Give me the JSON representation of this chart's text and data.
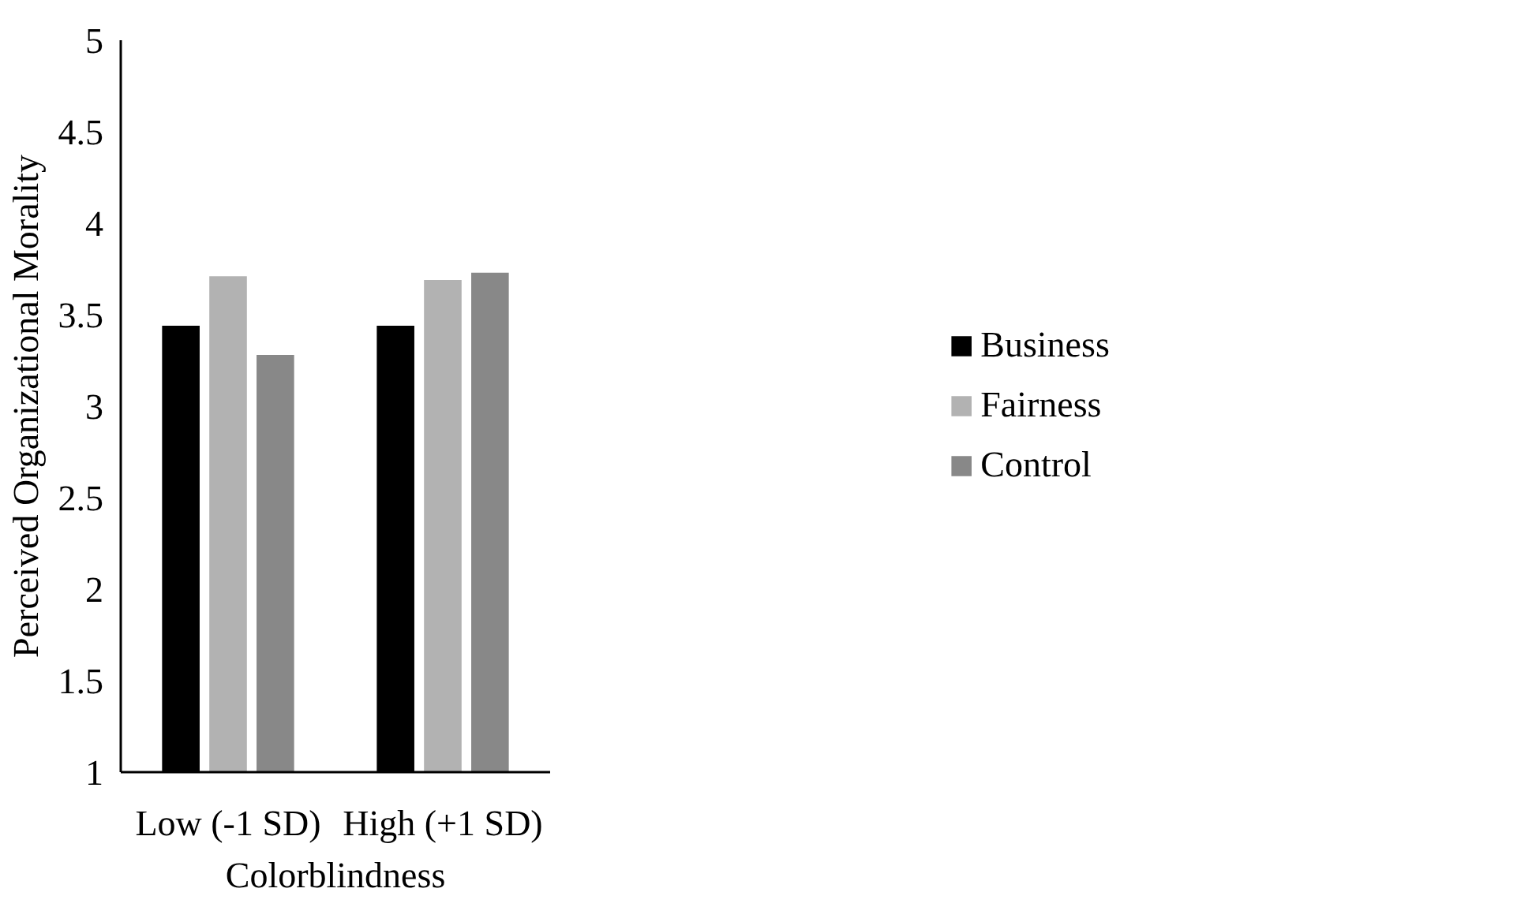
{
  "chart_data": {
    "type": "bar",
    "xlabel": "Colorblindness",
    "ylabel": "Perceived Organizational Morality",
    "categories": [
      "Low (-1 SD)",
      "High (+1 SD)"
    ],
    "series": [
      {
        "name": "Business",
        "color": "#000000",
        "values": [
          3.44,
          3.44
        ]
      },
      {
        "name": "Fairness",
        "color": "#b2b2b2",
        "values": [
          3.71,
          3.69
        ]
      },
      {
        "name": "Control",
        "color": "#888888",
        "values": [
          3.28,
          3.73
        ]
      }
    ],
    "ylim": [
      1,
      5
    ],
    "yticks": [
      1,
      1.5,
      2,
      2.5,
      3,
      3.5,
      4,
      4.5,
      5
    ],
    "grid": false,
    "legend": "right"
  }
}
